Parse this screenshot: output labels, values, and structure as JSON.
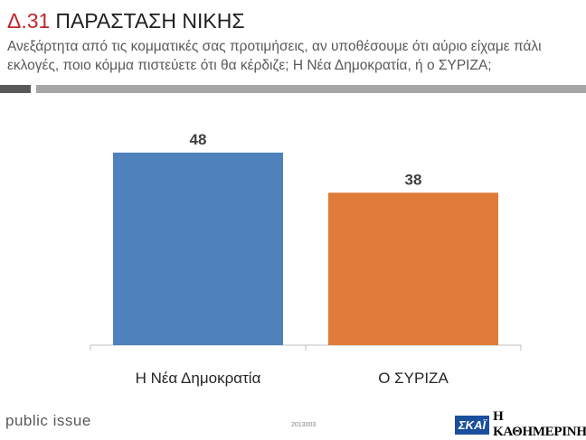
{
  "header": {
    "code": "Δ.31",
    "title": "ΠΑΡΑΣΤΑΣΗ ΝΙΚΗΣ",
    "subtitle": "Ανεξάρτητα από τις κομματικές σας προτιμήσεις, αν υποθέσουμε ότι αύριο είχαμε πάλι εκλογές, ποιο κόμμα πιστεύετε ότι θα κέρδιζε; Η Νέα Δημοκρατία, ή ο ΣΥΡΙΖΑ;"
  },
  "chart_data": {
    "type": "bar",
    "categories": [
      "Η Νέα Δημοκρατία",
      "Ο ΣΥΡΙΖΑ"
    ],
    "values": [
      48,
      38
    ],
    "colors": [
      "#4f81bd",
      "#e07b39"
    ],
    "ylim": [
      0,
      50
    ],
    "grid": false,
    "data_labels": true
  },
  "footer": {
    "brand": "public issue",
    "code": "2013003",
    "logo_skai": "ΣΚΑΪ",
    "logo_kathimerini": "Η ΚΑΘΗΜΕΡΙΝΗ"
  }
}
